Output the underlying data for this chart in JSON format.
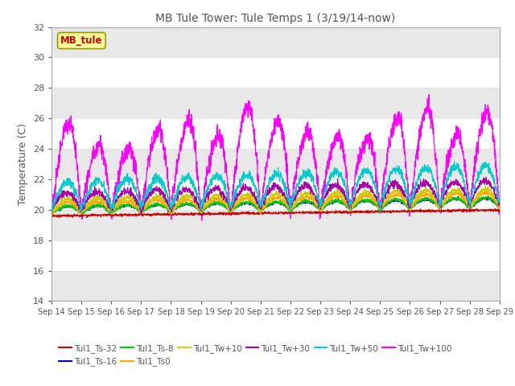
{
  "title": "MB Tule Tower: Tule Temps 1 (3/19/14-now)",
  "ylabel": "Temperature (C)",
  "ylim": [
    14,
    32
  ],
  "yticks": [
    14,
    16,
    18,
    20,
    22,
    24,
    26,
    28,
    30,
    32
  ],
  "bg_color": "#ffffff",
  "plot_bg_color": "#ffffff",
  "annotation_box": {
    "text": "MB_tule",
    "facecolor": "#ffff99",
    "edgecolor": "#999900",
    "textcolor": "#cc0000"
  },
  "grid_color": "#dddddd",
  "tick_label_color": "#555555",
  "title_color": "#555555",
  "legend": [
    {
      "label": "Tul1_Ts-32",
      "color": "#cc0000"
    },
    {
      "label": "Tul1_Ts-16",
      "color": "#0000cc"
    },
    {
      "label": "Tul1_Ts-8",
      "color": "#00cc00"
    },
    {
      "label": "Tul1_Ts0",
      "color": "#ffaa00"
    },
    {
      "label": "Tul1_Tw+10",
      "color": "#cccc00"
    },
    {
      "label": "Tul1_Tw+30",
      "color": "#aa00aa"
    },
    {
      "label": "Tul1_Tw+50",
      "color": "#00cccc"
    },
    {
      "label": "Tul1_Tw+100",
      "color": "#ff00ff"
    }
  ]
}
